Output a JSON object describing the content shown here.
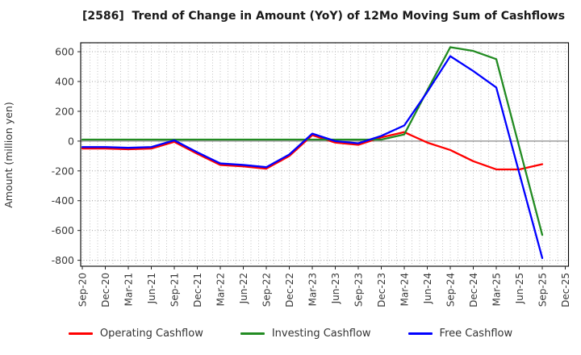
{
  "title": "[2586]  Trend of Change in Amount (YoY) of 12Mo Moving Sum of Cashflows",
  "ylabel": "Amount (million yen)",
  "chart_data": {
    "type": "line",
    "categories": [
      "Sep-20",
      "Dec-20",
      "Mar-21",
      "Jun-21",
      "Sep-21",
      "Dec-21",
      "Mar-22",
      "Jun-22",
      "Sep-22",
      "Dec-22",
      "Mar-23",
      "Jun-23",
      "Sep-23",
      "Dec-23",
      "Mar-24",
      "Jun-24",
      "Sep-24",
      "Dec-24",
      "Mar-25",
      "Jun-25",
      "Sep-25",
      "Dec-25"
    ],
    "series": [
      {
        "name": "Operating Cashflow",
        "color": "#ff0000",
        "values": [
          -50,
          -50,
          -55,
          -50,
          -5,
          -85,
          -160,
          -170,
          -185,
          -100,
          40,
          -10,
          -25,
          25,
          60,
          -10,
          -60,
          -135,
          -190,
          -190,
          -155,
          null
        ]
      },
      {
        "name": "Investing Cashflow",
        "color": "#228b22",
        "values": [
          10,
          10,
          10,
          10,
          10,
          10,
          10,
          10,
          10,
          10,
          10,
          10,
          10,
          10,
          45,
          340,
          630,
          605,
          550,
          -40,
          -630,
          null
        ]
      },
      {
        "name": "Free Cashflow",
        "color": "#0000ff",
        "values": [
          -40,
          -40,
          -45,
          -40,
          5,
          -75,
          -150,
          -160,
          -175,
          -90,
          50,
          0,
          -15,
          35,
          105,
          330,
          570,
          470,
          360,
          -215,
          -785,
          null
        ]
      }
    ],
    "ylim": [
      -840,
      660
    ],
    "yticks": [
      600,
      400,
      200,
      0,
      -200,
      -400,
      -600,
      -800
    ],
    "grid": true,
    "zero_line": true,
    "legend_position": "bottom",
    "axis_color": "#000000",
    "grid_color": "#b5b5b5",
    "tick_label_color": "#3a3a3a"
  }
}
